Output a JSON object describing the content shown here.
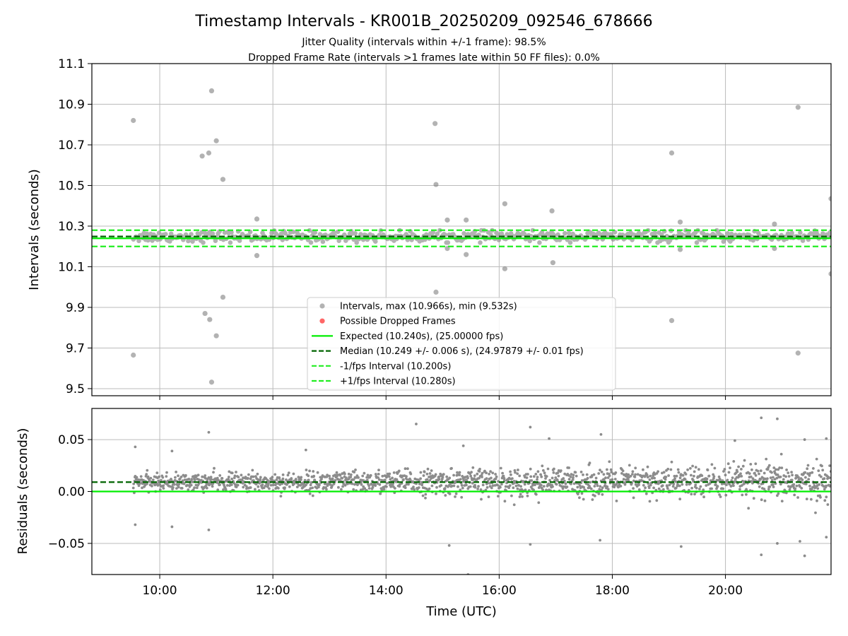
{
  "title": "Timestamp Intervals - KR001B_20250209_092546_678666",
  "subtitle_lines": [
    "Jitter Quality (intervals within +/-1 frame): 98.5%",
    "Dropped Frame Rate (intervals >1 frames late within 50 FF files): 0.0%"
  ],
  "colors": {
    "points": "#808080",
    "dropped": "#ff0000",
    "expected": "#00ee00",
    "median": "#006400",
    "bounds": "#22ee22",
    "grid": "#b0b0b0"
  },
  "chart_data": [
    {
      "type": "scatter",
      "panel": "top",
      "ylabel": "Intervals (seconds)",
      "xlabel": "",
      "xlim": [
        "09:32",
        "21:52"
      ],
      "ylim": [
        9.465,
        11.1
      ],
      "yticks": [
        9.5,
        9.7,
        9.9,
        10.1,
        10.3,
        10.5,
        10.7,
        10.9,
        11.1
      ],
      "ytick_labels": [
        "9.5",
        "9.7",
        "9.9",
        "10.1",
        "10.3",
        "10.5",
        "10.7",
        "10.9",
        "11.1"
      ],
      "xticks": [
        "10:00",
        "12:00",
        "14:00",
        "16:00",
        "18:00",
        "20:00"
      ],
      "grid": true,
      "legend_position": "lower-center",
      "legend": [
        {
          "label": "Intervals, max (10.966s), min (9.532s)",
          "marker": "dot",
          "color": "#808080"
        },
        {
          "label": "Possible Dropped Frames",
          "marker": "dot",
          "color": "#ff0000"
        },
        {
          "label": "Expected (10.240s), (25.00000 fps)",
          "marker": "solid",
          "color": "#00ee00"
        },
        {
          "label": "Median (10.249 +/- 0.006 s), (24.97879 +/- 0.01 fps)",
          "marker": "dashed",
          "color": "#006400"
        },
        {
          "label": "-1/fps Interval (10.200s)",
          "marker": "dashed",
          "color": "#22ee22"
        },
        {
          "label": "+1/fps Interval (10.280s)",
          "marker": "dashed",
          "color": "#22ee22"
        }
      ],
      "reference_lines": {
        "expected": 10.24,
        "median": 10.249,
        "lower": 10.2,
        "upper": 10.28
      },
      "outliers": [
        {
          "x": "09:32",
          "y": 10.82
        },
        {
          "x": "09:32",
          "y": 9.665
        },
        {
          "x": "10:45",
          "y": 10.645
        },
        {
          "x": "10:48",
          "y": 9.87
        },
        {
          "x": "10:52",
          "y": 10.66
        },
        {
          "x": "10:53",
          "y": 9.84
        },
        {
          "x": "10:55",
          "y": 10.966
        },
        {
          "x": "10:55",
          "y": 9.532
        },
        {
          "x": "11:00",
          "y": 10.72
        },
        {
          "x": "11:00",
          "y": 9.76
        },
        {
          "x": "11:07",
          "y": 10.53
        },
        {
          "x": "11:07",
          "y": 9.95
        },
        {
          "x": "11:43",
          "y": 10.335
        },
        {
          "x": "11:43",
          "y": 10.155
        },
        {
          "x": "14:52",
          "y": 10.805
        },
        {
          "x": "14:53",
          "y": 10.505
        },
        {
          "x": "14:53",
          "y": 9.975
        },
        {
          "x": "15:05",
          "y": 10.33
        },
        {
          "x": "15:05",
          "y": 10.19
        },
        {
          "x": "15:25",
          "y": 10.33
        },
        {
          "x": "15:25",
          "y": 10.16
        },
        {
          "x": "16:06",
          "y": 10.41
        },
        {
          "x": "16:06",
          "y": 10.09
        },
        {
          "x": "16:56",
          "y": 10.375
        },
        {
          "x": "16:57",
          "y": 10.12
        },
        {
          "x": "19:03",
          "y": 10.66
        },
        {
          "x": "19:03",
          "y": 9.835
        },
        {
          "x": "19:12",
          "y": 10.32
        },
        {
          "x": "19:12",
          "y": 10.185
        },
        {
          "x": "20:52",
          "y": 10.31
        },
        {
          "x": "20:52",
          "y": 10.19
        },
        {
          "x": "21:17",
          "y": 10.885
        },
        {
          "x": "21:17",
          "y": 9.675
        },
        {
          "x": "21:52",
          "y": 10.435
        },
        {
          "x": "21:52",
          "y": 10.065
        }
      ],
      "bulk_band": {
        "x_start": "09:32",
        "x_end": "21:52",
        "center": 10.249,
        "spread": 0.03
      }
    },
    {
      "type": "scatter",
      "panel": "bottom",
      "ylabel": "Residuals (seconds)",
      "xlabel": "Time (UTC)",
      "xlim": [
        "08:48",
        "21:52"
      ],
      "ylim": [
        -0.08,
        0.08
      ],
      "yticks": [
        -0.05,
        0.0,
        0.05
      ],
      "ytick_labels": [
        "−0.05",
        "0.00",
        "0.05"
      ],
      "xticks": [
        "10:00",
        "12:00",
        "14:00",
        "16:00",
        "18:00",
        "20:00"
      ],
      "grid": true,
      "reference_lines": {
        "expected": 0.0,
        "median": 0.009
      },
      "outliers": [
        {
          "x": "09:34",
          "y": 0.043
        },
        {
          "x": "09:34",
          "y": -0.032
        },
        {
          "x": "10:13",
          "y": 0.039
        },
        {
          "x": "10:13",
          "y": -0.034
        },
        {
          "x": "10:52",
          "y": 0.057
        },
        {
          "x": "10:52",
          "y": -0.037
        },
        {
          "x": "12:35",
          "y": 0.04
        },
        {
          "x": "14:32",
          "y": 0.065
        },
        {
          "x": "15:22",
          "y": 0.044
        },
        {
          "x": "15:27",
          "y": -0.08
        },
        {
          "x": "15:07",
          "y": -0.052
        },
        {
          "x": "16:53",
          "y": 0.051
        },
        {
          "x": "16:33",
          "y": 0.062
        },
        {
          "x": "16:33",
          "y": -0.051
        },
        {
          "x": "17:48",
          "y": 0.055
        },
        {
          "x": "17:47",
          "y": -0.047
        },
        {
          "x": "19:13",
          "y": -0.053
        },
        {
          "x": "20:10",
          "y": 0.049
        },
        {
          "x": "20:38",
          "y": 0.071
        },
        {
          "x": "20:38",
          "y": -0.061
        },
        {
          "x": "20:55",
          "y": 0.07
        },
        {
          "x": "20:55",
          "y": -0.05
        },
        {
          "x": "21:19",
          "y": -0.048
        },
        {
          "x": "21:24",
          "y": 0.05
        },
        {
          "x": "21:24",
          "y": -0.062
        },
        {
          "x": "21:47",
          "y": 0.051
        },
        {
          "x": "21:47",
          "y": -0.044
        }
      ],
      "bulk_band": {
        "x_start": "09:32",
        "x_end": "21:52",
        "center_start": 0.009,
        "center_end": 0.009,
        "spread_start": 0.008,
        "spread_end": 0.02
      }
    }
  ]
}
